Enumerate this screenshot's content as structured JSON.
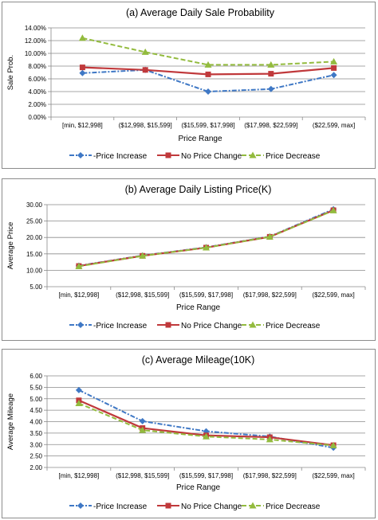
{
  "colors": {
    "price_increase": "#3f78c5",
    "no_price_change": "#c0393b",
    "price_decrease": "#93bb3e",
    "grid": "#8a8a8a",
    "axis": "#8a8a8a",
    "panel_border": "#8c8c8c"
  },
  "chart_data": [
    {
      "type": "line",
      "title": "(a) Average Daily Sale Probability",
      "xlabel": "Price Range",
      "ylabel": "Sale Prob.",
      "categories": [
        "[min, $12,998]",
        "($12,998, $15,599]",
        "($15,599, $17,998]",
        "($17,998, $22,599]",
        "($22,599, max]"
      ],
      "ylim": [
        0,
        14
      ],
      "ystep": 2,
      "ytick_decimals": 2,
      "ytick_suffix": "%",
      "grid": true,
      "legend": "bottom",
      "series": [
        {
          "name": "Price Increase",
          "legend_label": "-Price Increase",
          "values": [
            6.9,
            7.4,
            4.0,
            4.4,
            6.6
          ]
        },
        {
          "name": "No Price Change",
          "legend_label": "No Price Change",
          "values": [
            7.8,
            7.4,
            6.7,
            6.8,
            7.7
          ]
        },
        {
          "name": "Price Decrease",
          "legend_label": "Price Decrease",
          "values": [
            12.4,
            10.2,
            8.2,
            8.2,
            8.7
          ]
        }
      ]
    },
    {
      "type": "line",
      "title": "(b) Average Daily Listing Price(K)",
      "xlabel": "Price Range",
      "ylabel": "Average Price",
      "categories": [
        "[min, $12,998]",
        "($12,998, $15,599]",
        "($15,599, $17,998]",
        "($17,998, $22,599]",
        "($22,599, max]"
      ],
      "ylim": [
        5,
        30
      ],
      "ystep": 5,
      "ytick_decimals": 2,
      "ytick_suffix": "",
      "grid": true,
      "legend": "bottom",
      "series": [
        {
          "name": "Price Increase",
          "legend_label": "-Price Increase",
          "values": [
            11.4,
            14.5,
            17.0,
            20.3,
            28.6
          ]
        },
        {
          "name": "No Price Change",
          "legend_label": "No Price Change",
          "values": [
            11.3,
            14.4,
            16.9,
            20.2,
            28.3
          ]
        },
        {
          "name": "Price Decrease",
          "legend_label": "Price Decrease",
          "values": [
            11.2,
            14.4,
            16.9,
            20.2,
            28.2
          ]
        }
      ]
    },
    {
      "type": "line",
      "title": "(c) Average Mileage(10K)",
      "xlabel": "Price Range",
      "ylabel": "Average Mileage",
      "categories": [
        "[min, $12,998]",
        "($12,998, $15,599]",
        "($15,599, $17,998]",
        "($17,998, $22,599]",
        "($22,599, max]"
      ],
      "ylim": [
        2,
        6
      ],
      "ystep": 0.5,
      "ytick_decimals": 2,
      "ytick_suffix": "",
      "grid": true,
      "legend": "bottom",
      "series": [
        {
          "name": "Price Increase",
          "legend_label": "-Price Increase",
          "values": [
            5.38,
            4.02,
            3.58,
            3.35,
            2.86
          ]
        },
        {
          "name": "No Price Change",
          "legend_label": "No Price Change",
          "values": [
            4.93,
            3.72,
            3.4,
            3.32,
            2.97
          ]
        },
        {
          "name": "Price Decrease",
          "legend_label": "Price Decrease",
          "values": [
            4.8,
            3.63,
            3.35,
            3.22,
            2.96
          ]
        }
      ]
    }
  ]
}
